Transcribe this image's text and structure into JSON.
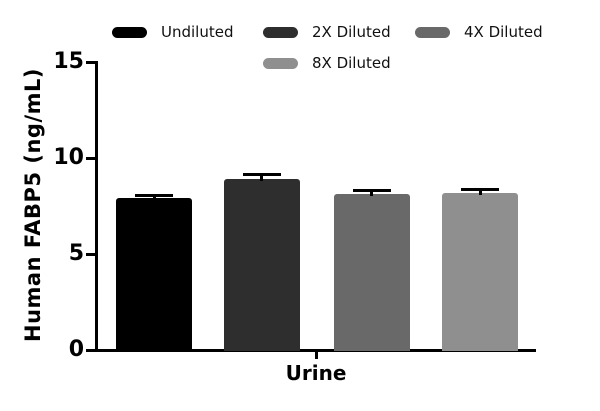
{
  "chart_data": {
    "type": "bar",
    "title": "",
    "categories": [
      "Urine"
    ],
    "series": [
      {
        "name": "Undiluted",
        "values": [
          7.9
        ],
        "errors": [
          0.13
        ],
        "color": "#000000"
      },
      {
        "name": "2X Diluted",
        "values": [
          8.9
        ],
        "errors": [
          0.26
        ],
        "color": "#2e2e2e"
      },
      {
        "name": "4X Diluted",
        "values": [
          8.1
        ],
        "errors": [
          0.19
        ],
        "color": "#696969"
      },
      {
        "name": "8X Diluted",
        "values": [
          8.2
        ],
        "errors": [
          0.14
        ],
        "color": "#8f8f8f"
      }
    ],
    "xlabel": "Urine",
    "ylabel": "Human FABP5 (ng/mL)",
    "ylim": [
      0,
      15
    ],
    "yticks": [
      0,
      5,
      10,
      15
    ],
    "grid": false,
    "legend_position": "top",
    "error_bar_color": "#000000",
    "axis_color": "#000000",
    "background_color": "#ffffff"
  }
}
